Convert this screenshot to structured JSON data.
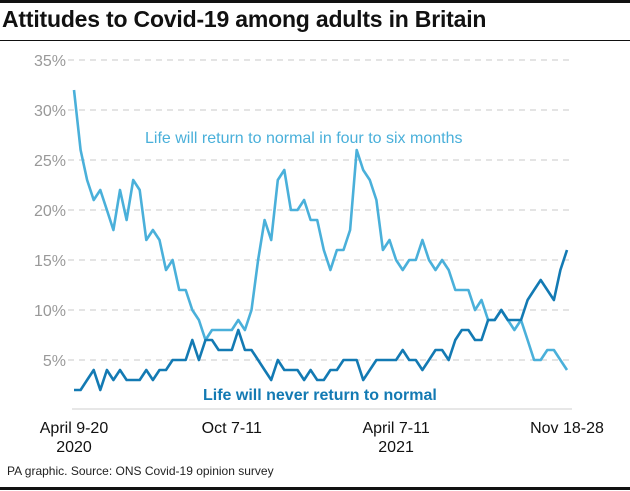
{
  "title": "Attitudes to Covid-19 among adults in Britain",
  "source": "PA graphic. Source: ONS Covid-19 opinion survey",
  "chart_data": {
    "type": "line",
    "title": "Attitudes to Covid-19 among adults in Britain",
    "ylim": [
      0,
      35
    ],
    "yticks": [
      5,
      10,
      15,
      20,
      25,
      30,
      35
    ],
    "ytick_labels": [
      "5%",
      "10%",
      "15%",
      "20%",
      "25%",
      "30%",
      "35%"
    ],
    "grid": true,
    "xtick_labels": [
      {
        "index": 0,
        "line1": "April 9-20",
        "line2": "2020"
      },
      {
        "index": 24,
        "line1": "Oct 7-11",
        "line2": ""
      },
      {
        "index": 49,
        "line1": "April 7-11",
        "line2": "2021"
      },
      {
        "index": 75,
        "line1": "Nov 18-28",
        "line2": ""
      }
    ],
    "series": [
      {
        "name": "Life will return to normal in four to six months",
        "color": "#4ab0da",
        "values": [
          32,
          26,
          23,
          21,
          22,
          20,
          18,
          22,
          19,
          23,
          22,
          17,
          18,
          17,
          14,
          15,
          12,
          12,
          10,
          9,
          7,
          8,
          8,
          8,
          8,
          9,
          8,
          10,
          15,
          19,
          17,
          23,
          24,
          20,
          20,
          21,
          19,
          19,
          16,
          14,
          16,
          16,
          18,
          26,
          24,
          23,
          21,
          16,
          17,
          15,
          14,
          15,
          15,
          17,
          15,
          14,
          15,
          14,
          12,
          12,
          12,
          10,
          11,
          9,
          9,
          10,
          9,
          8,
          9,
          7,
          5,
          5,
          6,
          6,
          5,
          4
        ]
      },
      {
        "name": "Life will never return to normal",
        "color": "#137ab3",
        "values": [
          2,
          2,
          3,
          4,
          2,
          4,
          3,
          4,
          3,
          3,
          3,
          4,
          3,
          4,
          4,
          5,
          5,
          5,
          7,
          5,
          7,
          7,
          6,
          6,
          6,
          8,
          6,
          6,
          5,
          4,
          3,
          5,
          4,
          4,
          4,
          3,
          4,
          3,
          3,
          4,
          4,
          5,
          5,
          5,
          3,
          4,
          5,
          5,
          5,
          5,
          6,
          5,
          5,
          4,
          5,
          6,
          6,
          5,
          7,
          8,
          8,
          7,
          7,
          9,
          9,
          10,
          9,
          9,
          9,
          11,
          12,
          13,
          12,
          11,
          14,
          16
        ]
      }
    ]
  }
}
